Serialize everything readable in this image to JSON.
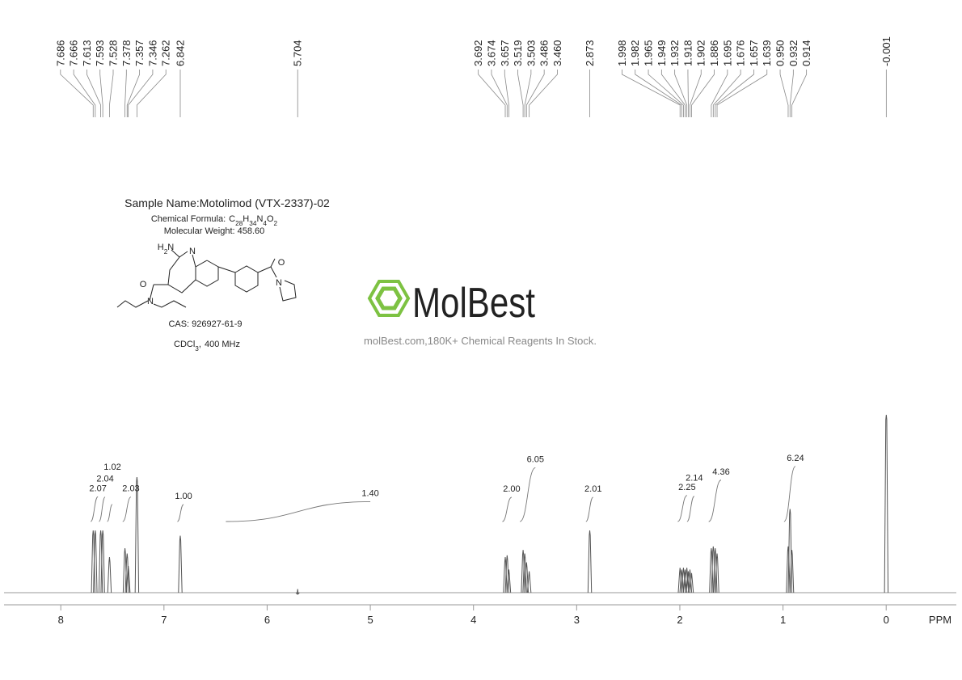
{
  "chart_data": {
    "type": "nmr",
    "sample_name": "Sample Name:Motolimod (VTX-2337)-02",
    "formula_label": "Chemical Formula:",
    "formula": "C28H34N4O2",
    "molecular_weight": "Molecular Weight: 458.60",
    "cas": "CAS: 926927-61-9",
    "solvent": "CDCl3,",
    "frequency": "400 MHz",
    "structure_labels": [
      "H2N",
      "N",
      "O",
      "N",
      "O",
      "N"
    ],
    "brand": "MolBest",
    "tagline": "molBest.com,180K+ Chemical Reagents In Stock.",
    "xlabel": "PPM",
    "xlim": [
      8.55,
      -0.68
    ],
    "xticks": [
      8,
      7,
      6,
      5,
      4,
      3,
      2,
      1,
      0
    ],
    "ylim": [
      0,
      100
    ],
    "peaks": {
      "values": [
        7.686,
        7.666,
        7.613,
        7.593,
        7.528,
        7.378,
        7.357,
        7.346,
        7.262,
        6.842,
        5.704,
        3.692,
        3.674,
        3.657,
        3.519,
        3.503,
        3.486,
        3.46,
        2.873,
        1.998,
        1.982,
        1.965,
        1.949,
        1.932,
        1.918,
        1.902,
        1.886,
        1.695,
        1.676,
        1.657,
        1.639,
        0.95,
        0.932,
        0.914,
        -0.001
      ],
      "value_labels": [
        "7.686",
        "7.666",
        "7.613",
        "7.593",
        "7.528",
        "7.378",
        "7.357",
        "7.346",
        "7.262",
        "6.842",
        "5.704",
        "3.692",
        "3.674",
        "3.657",
        "3.519",
        "3.503",
        "3.486",
        "3.460",
        "2.873",
        "1.998",
        "1.982",
        "1.965",
        "1.949",
        "1.932",
        "1.918",
        "1.902",
        "1.886",
        "1.695",
        "1.676",
        "1.657",
        "1.639",
        "0.950",
        "0.932",
        "0.914",
        "-0.001"
      ],
      "intensities": [
        35,
        35,
        35,
        35,
        20,
        25,
        22,
        15,
        65,
        32,
        2,
        20,
        21,
        13,
        24,
        22,
        17,
        12,
        35,
        14,
        13,
        14,
        13,
        14,
        12,
        13,
        11,
        25,
        26,
        25,
        22,
        26,
        47,
        24,
        100
      ]
    },
    "integrals": {
      "values": [
        2.07,
        2.04,
        1.02,
        2.03,
        1.0,
        1.4,
        2.0,
        6.05,
        2.01,
        2.25,
        2.14,
        4.36,
        6.24
      ],
      "value_labels": [
        "2.07",
        "2.04",
        "1.02",
        "2.03",
        "1.00",
        "1.40",
        "2.00",
        "6.05",
        "2.01",
        "2.25",
        "2.14",
        "4.36",
        "6.24"
      ],
      "ranges": [
        [
          7.71,
          7.64
        ],
        [
          7.63,
          7.57
        ],
        [
          7.55,
          7.5
        ],
        [
          7.4,
          7.32
        ],
        [
          6.87,
          6.81
        ],
        [
          6.4,
          5.0
        ],
        [
          3.72,
          3.63
        ],
        [
          3.55,
          3.4
        ],
        [
          2.91,
          2.84
        ],
        [
          2.02,
          1.93
        ],
        [
          1.93,
          1.86
        ],
        [
          1.72,
          1.6
        ],
        [
          0.99,
          0.88
        ]
      ]
    }
  }
}
